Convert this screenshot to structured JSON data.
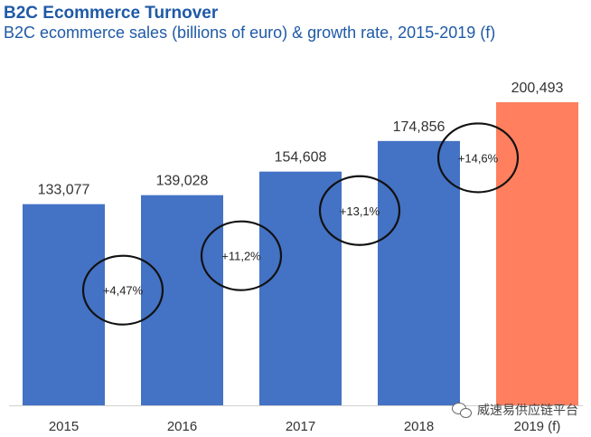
{
  "header": {
    "title": "B2C Ecommerce Turnover",
    "subtitle": "B2C ecommerce sales (billions of euro) & growth rate, 2015-2019 (f)"
  },
  "watermark": {
    "text": "威速易供应链平台",
    "icon": "wechat-icon"
  },
  "colors": {
    "bar": "#4472c4",
    "forecast_bar": "#ff7f5f",
    "title": "#1f5aa6"
  },
  "chart_data": {
    "type": "bar",
    "title": "B2C Ecommerce Turnover",
    "subtitle": "B2C ecommerce sales (billions of euro) & growth rate, 2015-2019 (f)",
    "categories": [
      "2015",
      "2016",
      "2017",
      "2018",
      "2019 (f)"
    ],
    "values": [
      133.077,
      139.028,
      154.608,
      174.856,
      200.493
    ],
    "value_labels": [
      "133,077",
      "139,028",
      "154,608",
      "174,856",
      "200,493"
    ],
    "forecast_index": 4,
    "ylim": [
      0,
      200.493
    ],
    "grid": false,
    "growth_rates": [
      {
        "label": "+4,47%",
        "between": [
          0,
          1
        ]
      },
      {
        "label": "+11,2%",
        "between": [
          1,
          2
        ]
      },
      {
        "label": "+13,1%",
        "between": [
          2,
          3
        ]
      },
      {
        "label": "+14,6%",
        "between": [
          3,
          4
        ]
      }
    ]
  }
}
